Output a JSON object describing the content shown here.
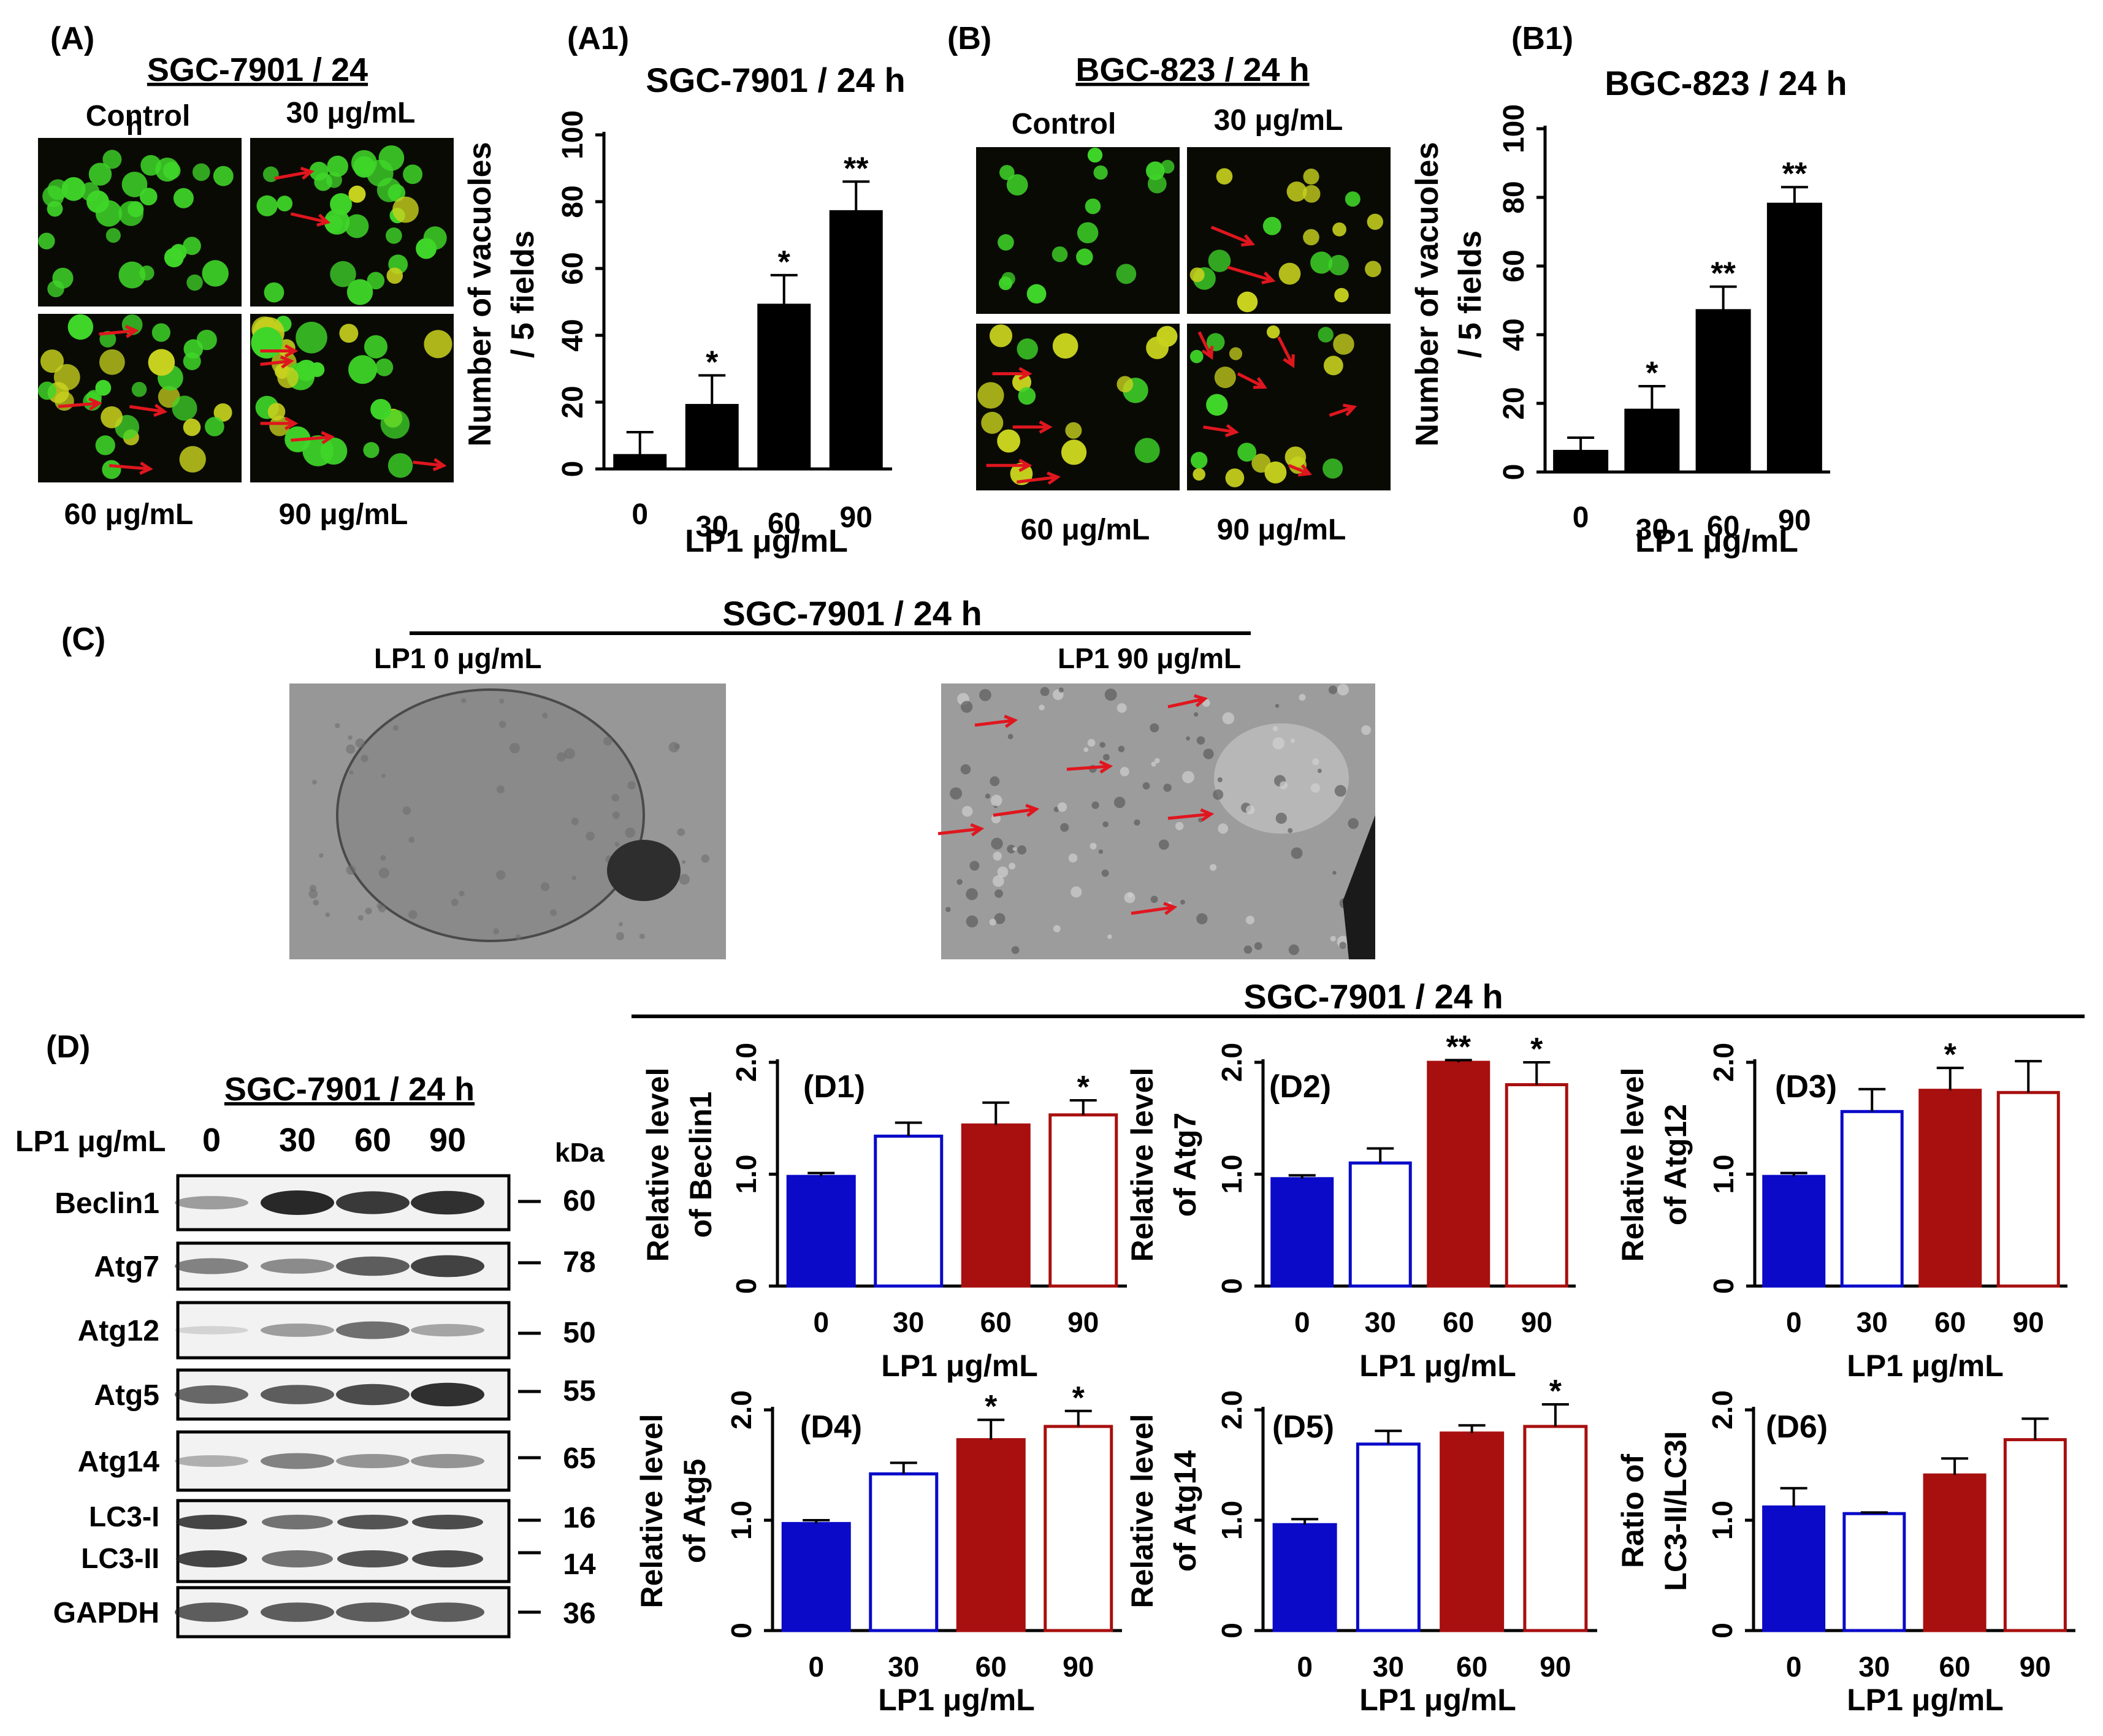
{
  "colors": {
    "black": "#000000",
    "blue": "#0a0ac8",
    "darkred": "#a80f0f",
    "arrow": "#e0161e",
    "fluor_bg": "#0a0a05",
    "fluor_green": "#3fd629",
    "fluor_yellow": "#c8d21e",
    "em_bg": "#8e8e8e",
    "blot_band": "#1c1c1c"
  },
  "panelA": {
    "label": "(A)",
    "title": "SGC-7901 / 24",
    "stray_mark": "h",
    "quadrant_labels": [
      "Control",
      "30 μg/mL",
      "60 μg/mL",
      "90 μg/mL"
    ]
  },
  "panelB": {
    "label": "(B)",
    "title": "BGC-823 / 24 h",
    "quadrant_labels": [
      "Control",
      "30 μg/mL",
      "60 μg/mL",
      "90 μg/mL"
    ]
  },
  "panelC": {
    "label": "(C)",
    "title": "SGC-7901 / 24 h",
    "left_label": "LP1  0 μg/mL",
    "right_label": "LP1  90 μg/mL"
  },
  "panelD": {
    "label": "(D)",
    "blot_title": "SGC-7901 / 24 h",
    "dose_label": "LP1 μg/mL",
    "doses": [
      "0",
      "30",
      "60",
      "90"
    ],
    "kda_label": "kDa",
    "bands": [
      {
        "name": "Beclin1",
        "kda": [
          "60"
        ]
      },
      {
        "name": "Atg7",
        "kda": [
          "78"
        ]
      },
      {
        "name": "Atg12",
        "kda": [
          "50"
        ]
      },
      {
        "name": "Atg5",
        "kda": [
          "55"
        ]
      },
      {
        "name": "Atg14",
        "kda": [
          "65"
        ]
      },
      {
        "name": "LC3-I\nLC3-II",
        "kda": [
          "16",
          "14"
        ]
      },
      {
        "name": "GAPDH",
        "kda": [
          "36"
        ]
      }
    ],
    "group_title": "SGC-7901 / 24 h"
  },
  "chart_data": [
    {
      "id": "A1",
      "type": "bar",
      "label": "(A1)",
      "title": "SGC-7901 / 24 h",
      "ylabel": [
        "Number of vacuoles",
        "/ 5 fields"
      ],
      "xlabel": "LP1 μg/mL",
      "categories": [
        "0",
        "30",
        "60",
        "90"
      ],
      "values": [
        4,
        19,
        49,
        77
      ],
      "errors": [
        7,
        9,
        9,
        9
      ],
      "sig": [
        "",
        "*",
        "*",
        "**"
      ],
      "yticks": [
        "0",
        "20",
        "40",
        "60",
        "80",
        "100"
      ],
      "ylim": [
        0,
        100
      ]
    },
    {
      "id": "B1",
      "type": "bar",
      "label": "(B1)",
      "title": "BGC-823 / 24 h",
      "ylabel": [
        "Number of vacuoles",
        "/ 5 fields"
      ],
      "xlabel": "LP1 μg/mL",
      "categories": [
        "0",
        "30",
        "60",
        "90"
      ],
      "values": [
        6,
        18,
        47,
        78
      ],
      "errors": [
        4,
        7,
        7,
        5
      ],
      "sig": [
        "",
        "*",
        "**",
        "**"
      ],
      "yticks": [
        "0",
        "20",
        "40",
        "60",
        "80",
        "100"
      ],
      "ylim": [
        0,
        100
      ]
    },
    {
      "id": "D1",
      "type": "bar",
      "label": "(D1)",
      "title": "",
      "ylabel": [
        "Relative level",
        "of Beclin1"
      ],
      "xlabel": "LP1 μg/mL",
      "categories": [
        "0",
        "30",
        "60",
        "90"
      ],
      "values": [
        0.98,
        1.34,
        1.44,
        1.53
      ],
      "errors": [
        0.03,
        0.12,
        0.2,
        0.13
      ],
      "sig": [
        "",
        "",
        "",
        "*"
      ],
      "yticks": [
        "0",
        "1.0",
        "2.0"
      ],
      "ylim": [
        0,
        2.0
      ]
    },
    {
      "id": "D2",
      "type": "bar",
      "label": "(D2)",
      "title": "",
      "ylabel": [
        "Relative level",
        "of Atg7"
      ],
      "xlabel": "LP1 μg/mL",
      "categories": [
        "0",
        "30",
        "60",
        "90"
      ],
      "values": [
        0.96,
        1.1,
        2.0,
        1.8
      ],
      "errors": [
        0.03,
        0.13,
        0.02,
        0.2
      ],
      "sig": [
        "",
        "",
        "**",
        "*"
      ],
      "yticks": [
        "0",
        "1.0",
        "2.0"
      ],
      "ylim": [
        0,
        2.0
      ]
    },
    {
      "id": "D3",
      "type": "bar",
      "label": "(D3)",
      "title": "",
      "ylabel": [
        "Relative level",
        "of Atg12"
      ],
      "xlabel": "LP1 μg/mL",
      "categories": [
        "0",
        "30",
        "60",
        "90"
      ],
      "values": [
        0.98,
        1.56,
        1.75,
        1.73
      ],
      "errors": [
        0.03,
        0.2,
        0.2,
        0.28
      ],
      "sig": [
        "",
        "",
        "*",
        ""
      ],
      "yticks": [
        "0",
        "1.0",
        "2.0"
      ],
      "ylim": [
        0,
        2.0
      ]
    },
    {
      "id": "D4",
      "type": "bar",
      "label": "(D4)",
      "title": "",
      "ylabel": [
        "Relative level",
        "of Atg5"
      ],
      "xlabel": "LP1 μg/mL",
      "categories": [
        "0",
        "30",
        "60",
        "90"
      ],
      "values": [
        0.97,
        1.42,
        1.73,
        1.85
      ],
      "errors": [
        0.03,
        0.1,
        0.18,
        0.14
      ],
      "sig": [
        "",
        "",
        "*",
        "*"
      ],
      "yticks": [
        "0",
        "1.0",
        "2.0"
      ],
      "ylim": [
        0,
        2.0
      ]
    },
    {
      "id": "D5",
      "type": "bar",
      "label": "(D5)",
      "title": "",
      "ylabel": [
        "Relative level",
        "of Atg14"
      ],
      "xlabel": "LP1 μg/mL",
      "categories": [
        "0",
        "30",
        "60",
        "90"
      ],
      "values": [
        0.96,
        1.69,
        1.79,
        1.85
      ],
      "errors": [
        0.05,
        0.12,
        0.07,
        0.2
      ],
      "sig": [
        "",
        "",
        "",
        "*"
      ],
      "yticks": [
        "0",
        "1.0",
        "2.0"
      ],
      "ylim": [
        0,
        2.0
      ]
    },
    {
      "id": "D6",
      "type": "bar",
      "label": "(D6)",
      "title": "",
      "ylabel": [
        "Ratio of",
        "LC3-II/LC3I"
      ],
      "xlabel": "LP1 μg/mL",
      "categories": [
        "0",
        "30",
        "60",
        "90"
      ],
      "values": [
        1.12,
        1.06,
        1.41,
        1.73
      ],
      "errors": [
        0.17,
        0.01,
        0.15,
        0.19
      ],
      "sig": [
        "",
        "",
        "",
        ""
      ],
      "yticks": [
        "0",
        "1.0",
        "2.0"
      ],
      "ylim": [
        0,
        2.0
      ]
    }
  ]
}
